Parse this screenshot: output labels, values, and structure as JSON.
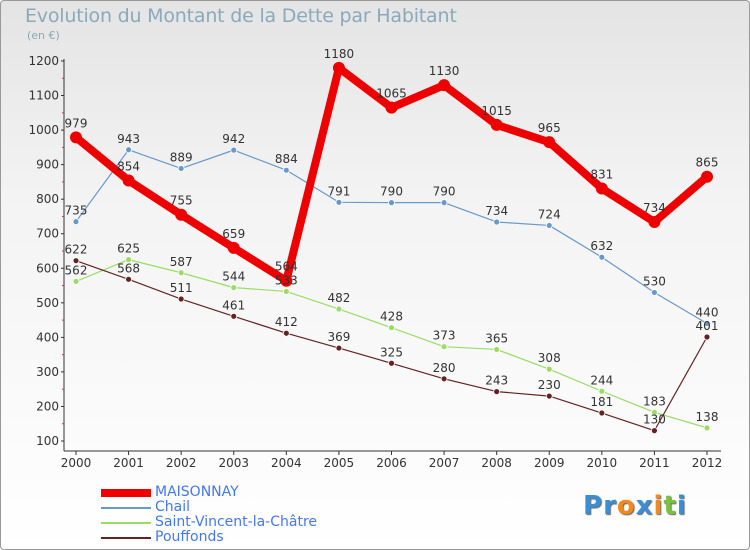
{
  "title": "Evolution du Montant de la Dette par Habitant",
  "subtitle": "(en €)",
  "logo": {
    "text": "Proxiti",
    "colors": [
      "#3a8fd4",
      "#3a8fd4",
      "#f08a1c",
      "#3a8fd4",
      "#f08a1c",
      "#7ac143",
      "#3a8fd4"
    ]
  },
  "chart_data": {
    "type": "line",
    "title": "Evolution du Montant de la Dette par Habitant",
    "ylabel": "(en €)",
    "xlabel": "",
    "x": [
      "2000",
      "2001",
      "2002",
      "2003",
      "2004",
      "2005",
      "2006",
      "2007",
      "2008",
      "2009",
      "2010",
      "2011",
      "2012"
    ],
    "ylim": [
      100,
      1200
    ],
    "yticks": [
      100,
      200,
      300,
      400,
      500,
      600,
      700,
      800,
      900,
      1000,
      1100,
      1200
    ],
    "grid": false,
    "legend_position": "bottom-left",
    "series": [
      {
        "name": "MAISONNAY",
        "color": "#ee0000",
        "values": [
          979,
          854,
          755,
          659,
          564,
          1180,
          1065,
          1130,
          1015,
          965,
          831,
          734,
          865
        ]
      },
      {
        "name": "Chail",
        "color": "#6699cc",
        "values": [
          735,
          943,
          889,
          942,
          884,
          791,
          790,
          790,
          734,
          724,
          632,
          530,
          440
        ]
      },
      {
        "name": "Saint-Vincent-la-Châtre",
        "color": "#99dd66",
        "values": [
          562,
          625,
          587,
          544,
          533,
          482,
          428,
          373,
          365,
          308,
          244,
          183,
          138
        ]
      },
      {
        "name": "Pouffonds",
        "color": "#662222",
        "values": [
          622,
          568,
          511,
          461,
          412,
          369,
          325,
          280,
          243,
          230,
          181,
          130,
          401
        ]
      }
    ]
  }
}
